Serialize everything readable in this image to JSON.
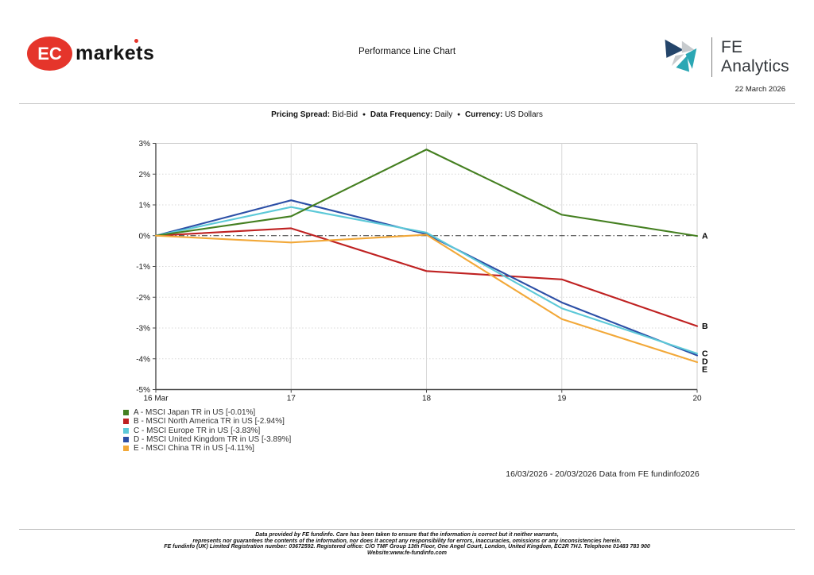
{
  "header": {
    "brand": {
      "ec": "EC",
      "markets": "markets"
    },
    "title": "Performance Line Chart",
    "fe_analytics": "FE Analytics",
    "report_date": "22 March 2026"
  },
  "pricing": {
    "spread_label": "Pricing Spread:",
    "spread_value": "Bid-Bid",
    "frequency_label": "Data Frequency:",
    "frequency_value": "Daily",
    "currency_label": "Currency:",
    "currency_value": "US Dollars",
    "separator": "●"
  },
  "chart_data": {
    "type": "line",
    "title": "Performance Line Chart",
    "x_categories": [
      "16 Mar",
      "17",
      "18",
      "19",
      "20"
    ],
    "ylim": [
      -5,
      3
    ],
    "y_tick_step": 1,
    "y_tick_labels": [
      "3%",
      "2%",
      "1%",
      "0%",
      "-1%",
      "-2%",
      "-3%",
      "-4%",
      "-5%"
    ],
    "grid": true,
    "zero_line": true,
    "legend_position": "bottom-left",
    "axis_color": "#4a4a4a",
    "grid_color": "#d8d8d8",
    "zero_line_color": "#333333",
    "series": [
      {
        "key": "A",
        "name": "MSCI Japan TR in US",
        "final_value_label": "-0.01%",
        "color": "#447f20",
        "values": [
          0,
          0.63,
          2.8,
          0.68,
          -0.01
        ],
        "legend_label": "A - MSCI Japan TR in US [-0.01%]"
      },
      {
        "key": "B",
        "name": "MSCI North America TR in US",
        "final_value_label": "-2.94%",
        "color": "#bf2121",
        "values": [
          0,
          0.24,
          -1.15,
          -1.42,
          -2.94
        ],
        "legend_label": "B - MSCI North America TR in US [-2.94%]"
      },
      {
        "key": "C",
        "name": "MSCI Europe TR in US",
        "final_value_label": "-3.83%",
        "color": "#5cc9d8",
        "values": [
          0,
          0.93,
          0.1,
          -2.36,
          -3.83
        ],
        "legend_label": "C - MSCI Europe TR in US [-3.83%]"
      },
      {
        "key": "D",
        "name": "MSCI United Kingdom TR in US",
        "final_value_label": "-3.89%",
        "color": "#2c4fa6",
        "values": [
          0,
          1.15,
          0.05,
          -2.17,
          -3.89
        ],
        "legend_label": "D - MSCI United Kingdom TR in US [-3.89%]"
      },
      {
        "key": "E",
        "name": "MSCI China TR in US",
        "final_value_label": "-4.11%",
        "color": "#f2a838",
        "values": [
          0,
          -0.22,
          0.03,
          -2.71,
          -4.11
        ],
        "legend_label": "E - MSCI China TR in US [-4.11%]"
      }
    ],
    "draw_order": [
      "B",
      "D",
      "C",
      "A",
      "E"
    ]
  },
  "date_range": "16/03/2026 - 20/03/2026 Data from FE fundinfo2026",
  "footer": {
    "lines": [
      "Data provided by FE fundinfo. Care has been taken to ensure that the information is correct but it neither warrants,",
      "represents nor guarantees the contents of the information, nor does it accept any responsibility for errors, inaccuracies, omissions or any inconsistencies herein.",
      "FE fundinfo (UK) Limited Registration number: 03672592. Registered office: C/O TMF Group 13th Floor, One Angel Court, London, United Kingdom, EC2R 7HJ. Telephone 01483 783 900",
      "Website:www.fe-fundinfo.com"
    ]
  }
}
